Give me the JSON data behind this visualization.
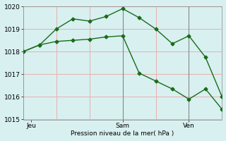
{
  "line1_x": [
    0,
    1,
    2,
    3,
    4,
    5,
    6,
    7,
    8,
    9,
    10,
    11,
    12
  ],
  "line1_y": [
    1018.0,
    1018.3,
    1019.0,
    1019.45,
    1019.35,
    1019.55,
    1019.9,
    1019.5,
    1019.0,
    1018.35,
    1018.7,
    1017.75,
    1016.0
  ],
  "line2_x": [
    0,
    1,
    2,
    3,
    4,
    5,
    6,
    7,
    8,
    9,
    10,
    11,
    12
  ],
  "line2_y": [
    1018.0,
    1018.3,
    1018.45,
    1018.5,
    1018.55,
    1018.65,
    1018.7,
    1017.05,
    1016.7,
    1016.35,
    1015.9,
    1016.35,
    1015.45
  ],
  "color": "#1a6b1a",
  "bg_color": "#d8f0f0",
  "grid_color_h": "#e8b0b0",
  "grid_color_v": "#e8b0b0",
  "xlabel": "Pression niveau de la mer( hPa )",
  "ylim": [
    1015,
    1020
  ],
  "yticks": [
    1015,
    1016,
    1017,
    1018,
    1019,
    1020
  ],
  "xlim": [
    0,
    12
  ],
  "xtick_positions": [
    0.5,
    6,
    10
  ],
  "xtick_labels": [
    "Jeu",
    "Sam",
    "Ven"
  ],
  "vline_positions": [
    6,
    10
  ],
  "vline_color": "#888888",
  "marker": "D",
  "markersize": 2.5,
  "linewidth": 1.0
}
